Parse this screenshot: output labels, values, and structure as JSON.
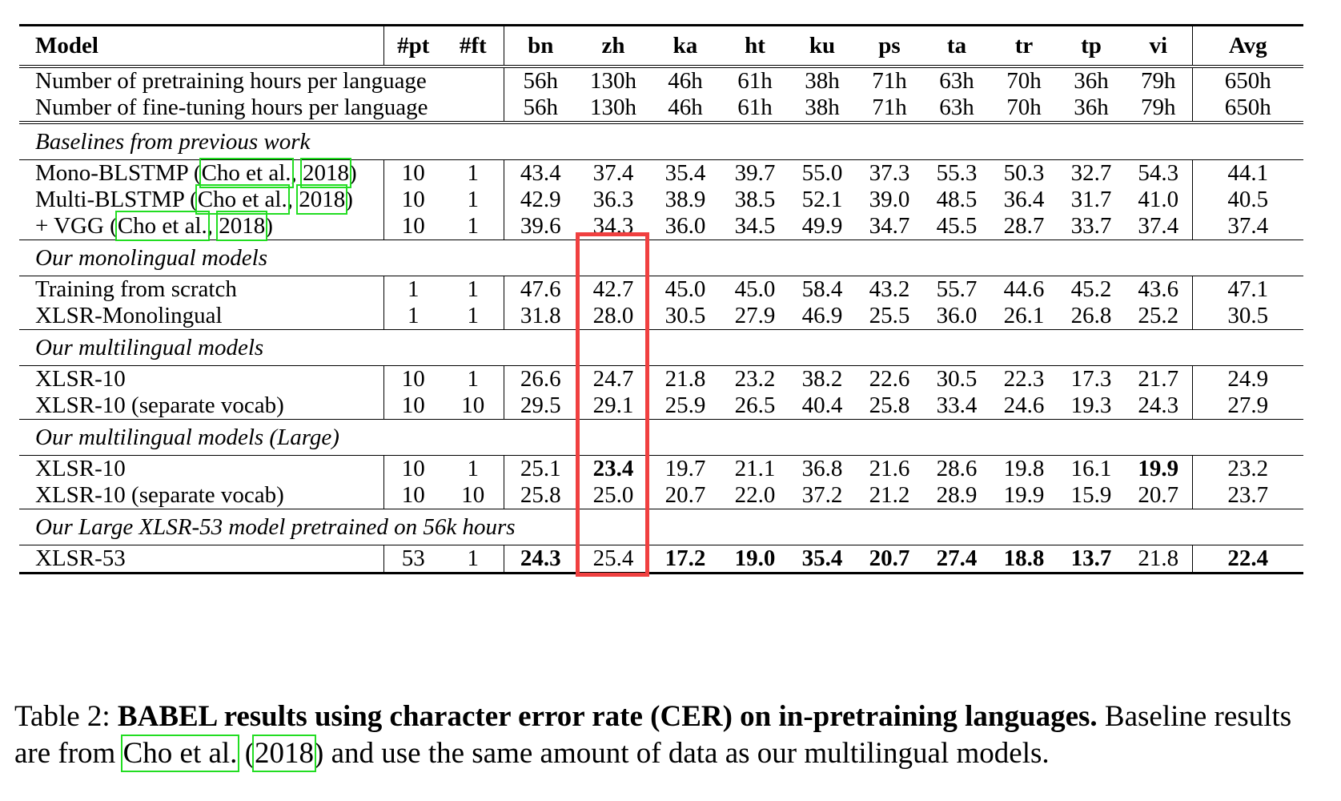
{
  "table": {
    "headers": {
      "model": "Model",
      "pt": "#pt",
      "ft": "#ft",
      "langs": [
        "bn",
        "zh",
        "ka",
        "ht",
        "ku",
        "ps",
        "ta",
        "tr",
        "tp",
        "vi"
      ],
      "avg": "Avg"
    },
    "hours": {
      "pretrain_label": "Number of pretraining hours per language",
      "finetune_label": "Number of fine-tuning hours per language",
      "pretrain": [
        "56h",
        "130h",
        "46h",
        "61h",
        "38h",
        "71h",
        "63h",
        "70h",
        "36h",
        "79h",
        "650h"
      ],
      "finetune": [
        "56h",
        "130h",
        "46h",
        "61h",
        "38h",
        "71h",
        "63h",
        "70h",
        "36h",
        "79h",
        "650h"
      ]
    },
    "sections": [
      {
        "title": "Baselines from previous work",
        "rows": [
          {
            "name_pre": "Mono-BLSTMP (",
            "cite_author": "Cho et al.",
            "cite_sep": ", ",
            "cite_year": "2018",
            "name_post": ")",
            "pt": "10",
            "ft": "1",
            "values": [
              "43.4",
              "37.4",
              "35.4",
              "39.7",
              "55.0",
              "37.3",
              "55.3",
              "50.3",
              "32.7",
              "54.3",
              "44.1"
            ]
          },
          {
            "name_pre": "Multi-BLSTMP (",
            "cite_author": "Cho et al.",
            "cite_sep": ", ",
            "cite_year": "2018",
            "name_post": ")",
            "pt": "10",
            "ft": "1",
            "values": [
              "42.9",
              "36.3",
              "38.9",
              "38.5",
              "52.1",
              "39.0",
              "48.5",
              "36.4",
              "31.7",
              "41.0",
              "40.5"
            ]
          },
          {
            "name_pre": "+ VGG (",
            "cite_author": "Cho et al.",
            "cite_sep": ", ",
            "cite_year": "2018",
            "name_post": ")",
            "pt": "10",
            "ft": "1",
            "values": [
              "39.6",
              "34.3",
              "36.0",
              "34.5",
              "49.9",
              "34.7",
              "45.5",
              "28.7",
              "33.7",
              "37.4",
              "37.4"
            ]
          }
        ]
      },
      {
        "title": "Our monolingual models",
        "rows": [
          {
            "name": "Training from scratch",
            "pt": "1",
            "ft": "1",
            "values": [
              "47.6",
              "42.7",
              "45.0",
              "45.0",
              "58.4",
              "43.2",
              "55.7",
              "44.6",
              "45.2",
              "43.6",
              "47.1"
            ]
          },
          {
            "name": "XLSR-Monolingual",
            "pt": "1",
            "ft": "1",
            "values": [
              "31.8",
              "28.0",
              "30.5",
              "27.9",
              "46.9",
              "25.5",
              "36.0",
              "26.1",
              "26.8",
              "25.2",
              "30.5"
            ]
          }
        ]
      },
      {
        "title": "Our multilingual models",
        "rows": [
          {
            "name": "XLSR-10",
            "pt": "10",
            "ft": "1",
            "values": [
              "26.6",
              "24.7",
              "21.8",
              "23.2",
              "38.2",
              "22.6",
              "30.5",
              "22.3",
              "17.3",
              "21.7",
              "24.9"
            ]
          },
          {
            "name": "XLSR-10 (separate vocab)",
            "pt": "10",
            "ft": "10",
            "values": [
              "29.5",
              "29.1",
              "25.9",
              "26.5",
              "40.4",
              "25.8",
              "33.4",
              "24.6",
              "19.3",
              "24.3",
              "27.9"
            ]
          }
        ]
      },
      {
        "title": "Our multilingual models (Large)",
        "rows": [
          {
            "name": "XLSR-10",
            "pt": "10",
            "ft": "1",
            "values": [
              "25.1",
              "23.4",
              "19.7",
              "21.1",
              "36.8",
              "21.6",
              "28.6",
              "19.8",
              "16.1",
              "19.9",
              "23.2"
            ],
            "bold": [
              1,
              9
            ]
          },
          {
            "name": "XLSR-10 (separate vocab)",
            "pt": "10",
            "ft": "10",
            "values": [
              "25.8",
              "25.0",
              "20.7",
              "22.0",
              "37.2",
              "21.2",
              "28.9",
              "19.9",
              "15.9",
              "20.7",
              "23.7"
            ]
          }
        ]
      },
      {
        "title": "Our Large XLSR-53 model pretrained on 56k hours",
        "rows": [
          {
            "name": "XLSR-53",
            "pt": "53",
            "ft": "1",
            "values": [
              "24.3",
              "25.4",
              "17.2",
              "19.0",
              "35.4",
              "20.7",
              "27.4",
              "18.8",
              "13.7",
              "21.8",
              "22.4"
            ],
            "bold": [
              0,
              2,
              3,
              4,
              5,
              6,
              7,
              8,
              10
            ]
          }
        ]
      }
    ]
  },
  "caption": {
    "label": "Table 2: ",
    "title": "BABEL results using character error rate (CER) on in-pretraining languages.",
    "text_pre": " Baseline results are from ",
    "cite_author": "Cho et al.",
    "cite_mid": " (",
    "cite_year": "2018",
    "text_post": ") and use the same amount of data as our multilingual models."
  },
  "highlight": {
    "column": "zh",
    "color": "#f04040"
  },
  "citation_box_color": "#22dd22"
}
